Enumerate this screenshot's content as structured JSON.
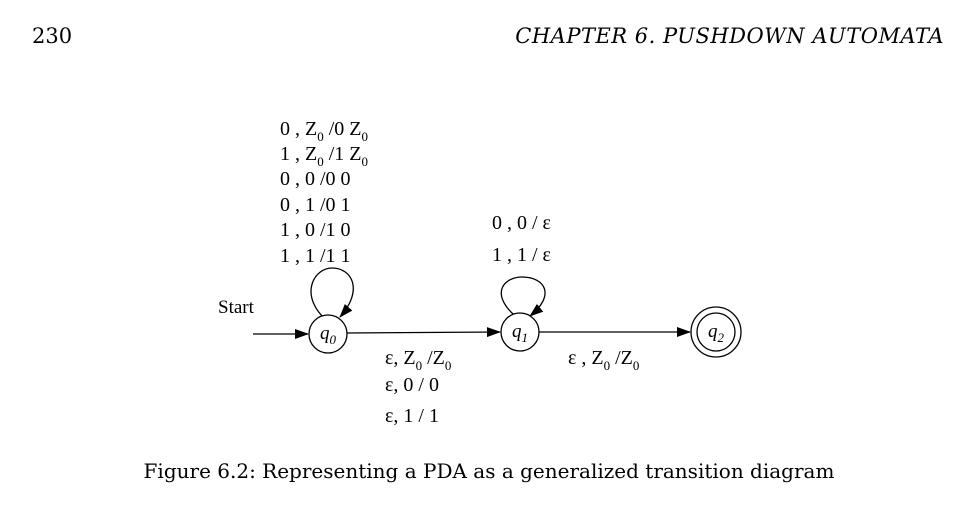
{
  "header": {
    "page_number": "230",
    "running_head": "CHAPTER 6.  PUSHDOWN AUTOMATA"
  },
  "caption": "Figure 6.2: Representing a PDA as a generalized transition diagram",
  "diagram": {
    "start_label": "Start",
    "states": [
      {
        "id": "q0",
        "name": "q",
        "sub": "0",
        "accepting": false
      },
      {
        "id": "q1",
        "name": "q",
        "sub": "1",
        "accepting": false
      },
      {
        "id": "q2",
        "name": "q",
        "sub": "2",
        "accepting": true
      }
    ],
    "q0_loop_labels": [
      {
        "a": "0 ,  Z",
        "s1": "0",
        "b": " /0 Z",
        "s2": "0"
      },
      {
        "a": "1 ,  Z",
        "s1": "0",
        "b": " /1 Z",
        "s2": "0"
      },
      {
        "a": "0 ,  0 /0 0",
        "s1": "",
        "b": "",
        "s2": ""
      },
      {
        "a": "0 ,  1 /0 1",
        "s1": "",
        "b": "",
        "s2": ""
      },
      {
        "a": "1 ,  0 /1 0",
        "s1": "",
        "b": "",
        "s2": ""
      },
      {
        "a": "1 ,  1 /1 1",
        "s1": "",
        "b": "",
        "s2": ""
      }
    ],
    "q1_loop_labels": [
      "0 ,  0 / ε",
      "1 ,  1 / ε"
    ],
    "q0_q1_labels": [
      {
        "a": "ε,  Z",
        "s1": "0",
        "b": " /Z",
        "s2": "0"
      },
      {
        "a": "ε,  0 / 0",
        "s1": "",
        "b": "",
        "s2": ""
      },
      {
        "a": "ε,  1 /  1",
        "s1": "",
        "b": "",
        "s2": ""
      }
    ],
    "q1_q2_label": {
      "a": "ε ,  Z",
      "s1": "0",
      "b": " /Z",
      "s2": "0"
    }
  }
}
